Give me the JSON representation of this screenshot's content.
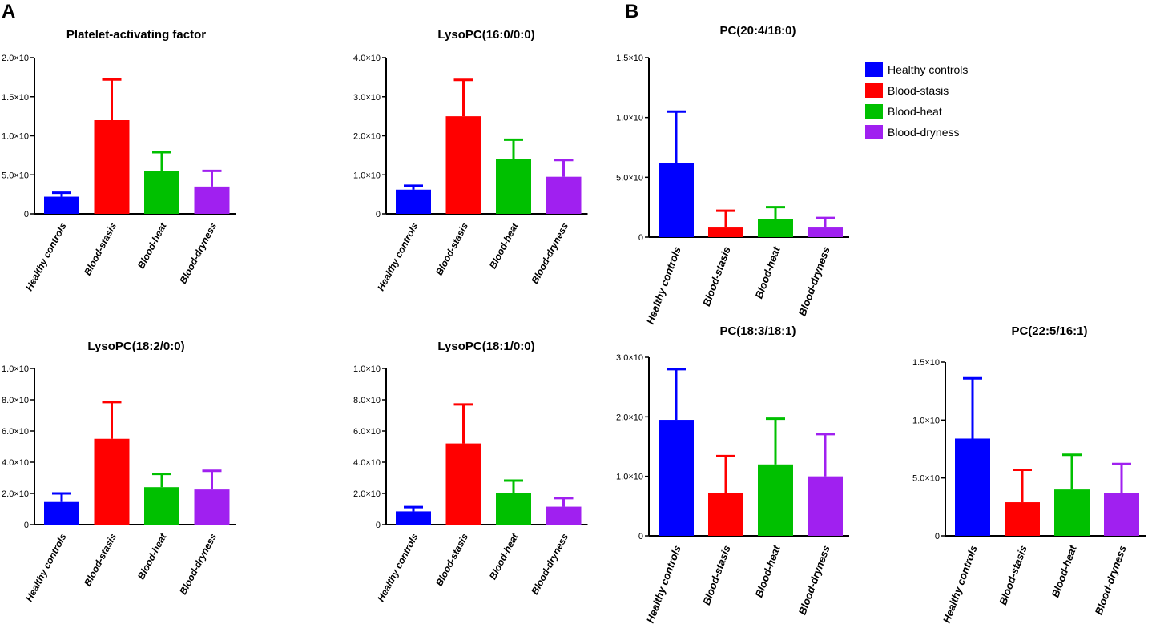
{
  "figure": {
    "panel_labels": [
      "A",
      "B"
    ]
  },
  "legend": {
    "entries": [
      {
        "label": "Healthy controls",
        "color": "#0000ff"
      },
      {
        "label": "Blood-stasis",
        "color": "#ff0000"
      },
      {
        "label": "Blood-heat",
        "color": "#00c000"
      },
      {
        "label": "Blood-dryness",
        "color": "#a020f0"
      }
    ]
  },
  "chart_data": [
    {
      "type": "bar",
      "title": "Platelet-activating factor",
      "categories": [
        "Healthy controls",
        "Blood-stasis",
        "Blood-heat",
        "Blood-dryness"
      ],
      "colors": [
        "#0000ff",
        "#ff0000",
        "#00c000",
        "#a020f0"
      ],
      "values": [
        2.2,
        12.0,
        5.5,
        3.5
      ],
      "errors": [
        0.5,
        5.2,
        2.4,
        2.0
      ],
      "ylim": [
        0,
        20
      ],
      "ticks": [
        0,
        5,
        10,
        15,
        20
      ],
      "tick_labels": [
        "0",
        "5.0×10",
        "1.0×10",
        "1.5×10",
        "2.0×10"
      ],
      "xlabel": "",
      "ylabel": ""
    },
    {
      "type": "bar",
      "title": "LysoPC(16:0/0:0)",
      "categories": [
        "Healthy controls",
        "Blood-stasis",
        "Blood-heat",
        "Blood-dryness"
      ],
      "colors": [
        "#0000ff",
        "#ff0000",
        "#00c000",
        "#a020f0"
      ],
      "values": [
        0.62,
        2.5,
        1.4,
        0.95
      ],
      "errors": [
        0.1,
        0.93,
        0.5,
        0.43
      ],
      "ylim": [
        0,
        4
      ],
      "ticks": [
        0,
        1,
        2,
        3,
        4
      ],
      "tick_labels": [
        "0",
        "1.0×10",
        "2.0×10",
        "3.0×10",
        "4.0×10"
      ],
      "xlabel": "",
      "ylabel": ""
    },
    {
      "type": "bar",
      "title": "PC(20:4/18:0)",
      "categories": [
        "Healthy controls",
        "Blood-stasis",
        "Blood-heat",
        "Blood-dryness"
      ],
      "colors": [
        "#0000ff",
        "#ff0000",
        "#00c000",
        "#a020f0"
      ],
      "values": [
        0.62,
        0.08,
        0.15,
        0.08
      ],
      "errors": [
        0.43,
        0.14,
        0.1,
        0.08
      ],
      "ylim": [
        0,
        1.5
      ],
      "ticks": [
        0,
        0.5,
        1.0,
        1.5
      ],
      "tick_labels": [
        "0",
        "5.0×10",
        "1.0×10",
        "1.5×10"
      ],
      "xlabel": "",
      "ylabel": ""
    },
    {
      "type": "bar",
      "title": "LysoPC(18:2/0:0)",
      "categories": [
        "Healthy controls",
        "Blood-stasis",
        "Blood-heat",
        "Blood-dryness"
      ],
      "colors": [
        "#0000ff",
        "#ff0000",
        "#00c000",
        "#a020f0"
      ],
      "values": [
        1.45,
        5.5,
        2.4,
        2.25
      ],
      "errors": [
        0.55,
        2.35,
        0.85,
        1.2
      ],
      "ylim": [
        0,
        10
      ],
      "ticks": [
        0,
        2,
        4,
        6,
        8,
        10
      ],
      "tick_labels": [
        "0",
        "2.0×10",
        "4.0×10",
        "6.0×10",
        "8.0×10",
        "1.0×10"
      ],
      "xlabel": "",
      "ylabel": ""
    },
    {
      "type": "bar",
      "title": "LysoPC(18:1/0:0)",
      "categories": [
        "Healthy controls",
        "Blood-stasis",
        "Blood-heat",
        "Blood-dryness"
      ],
      "colors": [
        "#0000ff",
        "#ff0000",
        "#00c000",
        "#a020f0"
      ],
      "values": [
        0.85,
        5.2,
        2.0,
        1.15
      ],
      "errors": [
        0.27,
        2.5,
        0.82,
        0.55
      ],
      "ylim": [
        0,
        10
      ],
      "ticks": [
        0,
        2,
        4,
        6,
        8,
        10
      ],
      "tick_labels": [
        "0",
        "2.0×10",
        "4.0×10",
        "6.0×10",
        "8.0×10",
        "1.0×10"
      ],
      "xlabel": "",
      "ylabel": ""
    },
    {
      "type": "bar",
      "title": "PC(18:3/18:1)",
      "categories": [
        "Healthy controls",
        "Blood-stasis",
        "Blood-heat",
        "Blood-dryness"
      ],
      "colors": [
        "#0000ff",
        "#ff0000",
        "#00c000",
        "#a020f0"
      ],
      "values": [
        1.95,
        0.72,
        1.2,
        1.0
      ],
      "errors": [
        0.85,
        0.62,
        0.77,
        0.71
      ],
      "ylim": [
        0,
        3
      ],
      "ticks": [
        0,
        1,
        2,
        3
      ],
      "tick_labels": [
        "0",
        "1.0×10",
        "2.0×10",
        "3.0×10"
      ],
      "xlabel": "",
      "ylabel": ""
    },
    {
      "type": "bar",
      "title": "PC(22:5/16:1)",
      "categories": [
        "Healthy controls",
        "Blood-stasis",
        "Blood-heat",
        "Blood-dryness"
      ],
      "colors": [
        "#0000ff",
        "#ff0000",
        "#00c000",
        "#a020f0"
      ],
      "values": [
        0.84,
        0.29,
        0.4,
        0.37
      ],
      "errors": [
        0.52,
        0.28,
        0.3,
        0.25
      ],
      "ylim": [
        0,
        1.5
      ],
      "ticks": [
        0,
        0.5,
        1.0,
        1.5
      ],
      "tick_labels": [
        "0",
        "5.0×10",
        "1.0×10",
        "1.5×10"
      ],
      "xlabel": "",
      "ylabel": ""
    }
  ]
}
